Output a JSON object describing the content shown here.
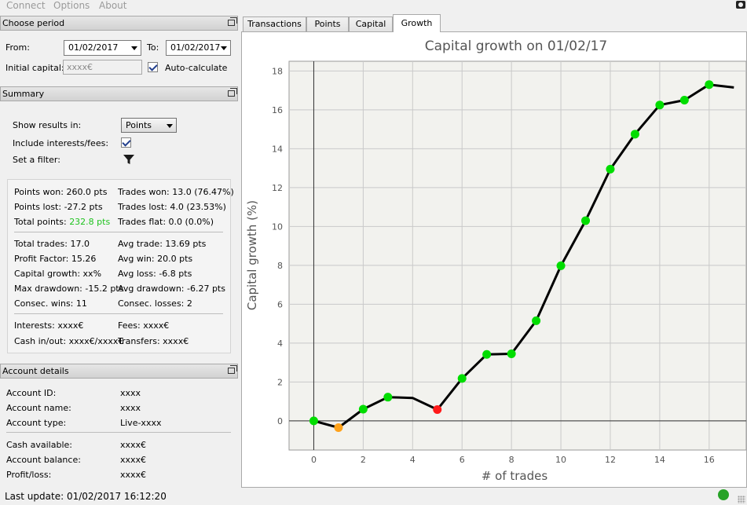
{
  "menu": {
    "items": [
      "Connect",
      "Options",
      "About"
    ]
  },
  "period": {
    "header": "Choose period",
    "from_label": "From:",
    "from_value": "01/02/2017",
    "to_label": "To:",
    "to_value": "01/02/2017",
    "initial_capital_label": "Initial capital:",
    "initial_capital_placeholder": "xxxx€",
    "auto_calc_label": "Auto-calculate"
  },
  "summary": {
    "header": "Summary",
    "show_results_label": "Show results in:",
    "show_results_value": "Points",
    "include_label": "Include interests/fees:",
    "filter_label": "Set a filter:",
    "stats": {
      "points_won": "Points won: 260.0 pts",
      "points_lost": "Points lost: -27.2 pts",
      "total_points_label": "Total points:",
      "total_points_value": "232.8 pts",
      "trades_won": "Trades won: 13.0 (76.47%)",
      "trades_lost": "Trades lost: 4.0 (23.53%)",
      "trades_flat": "Trades flat: 0.0 (0.0%)",
      "total_trades": "Total trades: 17.0",
      "profit_factor": "Profit Factor: 15.26",
      "capital_growth": "Capital growth: xx%",
      "max_drawdown": "Max drawdown: -15.2 pts",
      "consec_wins": "Consec. wins: 11",
      "avg_trade": "Avg trade: 13.69 pts",
      "avg_win": "Avg win: 20.0 pts",
      "avg_loss": "Avg loss: -6.8 pts",
      "avg_drawdown": "Avg drawdown: -6.27 pts",
      "consec_losses": "Consec. losses: 2",
      "interests": "Interests: xxxx€",
      "fees": "Fees: xxxx€",
      "cash_in_out": "Cash in/out: xxxx€/xxxx€",
      "transfers": "Transfers: xxxx€"
    }
  },
  "account": {
    "header": "Account details",
    "rows": [
      {
        "label": "Account ID:",
        "value": "xxxx"
      },
      {
        "label": "Account name:",
        "value": "xxxx"
      },
      {
        "label": "Account type:",
        "value": "Live-xxxx"
      },
      {
        "label": "Cash available:",
        "value": "xxxx€"
      },
      {
        "label": "Account balance:",
        "value": "xxxx€"
      },
      {
        "label": "Profit/loss:",
        "value": "xxxx€"
      }
    ]
  },
  "tabs": [
    "Transactions",
    "Points",
    "Capital",
    "Growth"
  ],
  "active_tab": "Growth",
  "status": {
    "last_update": "Last update: 01/02/2017 16:12:20",
    "connection_color": "#26a226"
  },
  "chart_data": {
    "type": "line",
    "title": "Capital growth on 01/02/17",
    "xlabel": "# of trades",
    "ylabel": "Capital growth (%)",
    "x": [
      0,
      1,
      2,
      3,
      4,
      5,
      6,
      7,
      8,
      9,
      10,
      11,
      12,
      13,
      14,
      15,
      16,
      17
    ],
    "y": [
      0,
      -0.35,
      0.6,
      1.22,
      1.18,
      0.58,
      2.18,
      3.42,
      3.45,
      5.15,
      7.98,
      10.3,
      12.95,
      14.75,
      16.25,
      16.5,
      17.3,
      17.15
    ],
    "marker_colors": [
      "#00dd00",
      "#ffa21a",
      "#00dd00",
      "#00dd00",
      null,
      "#ff1a1a",
      "#00dd00",
      "#00dd00",
      "#00dd00",
      "#00dd00",
      "#00dd00",
      "#00dd00",
      "#00dd00",
      "#00dd00",
      "#00dd00",
      "#00dd00",
      "#00dd00",
      null
    ],
    "xticks": [
      0,
      2,
      4,
      6,
      8,
      10,
      12,
      14,
      16
    ],
    "yticks": [
      0,
      2,
      4,
      6,
      8,
      10,
      12,
      14,
      16,
      18
    ],
    "xlim": [
      -1,
      17.5
    ],
    "ylim": [
      -1.5,
      18.5
    ],
    "grid": true,
    "line_color": "#000000"
  }
}
